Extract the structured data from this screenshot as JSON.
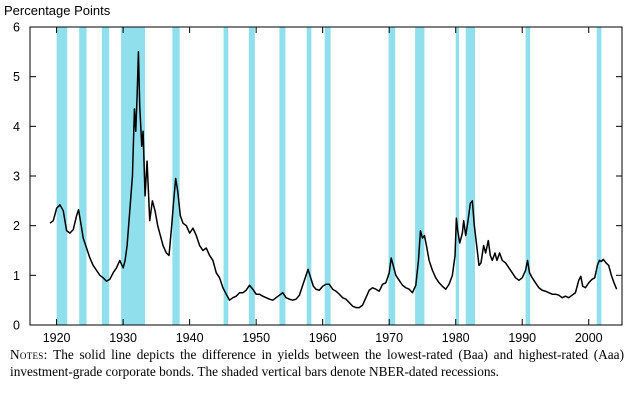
{
  "chart_data": {
    "type": "line",
    "title": "",
    "ylabel": "Percentage Points",
    "xlabel": "",
    "xlim": [
      1916,
      2005
    ],
    "ylim": [
      0,
      6
    ],
    "x_ticks": [
      1920,
      1930,
      1940,
      1950,
      1960,
      1970,
      1980,
      1990,
      2000
    ],
    "y_ticks": [
      0,
      1,
      2,
      3,
      4,
      5,
      6
    ],
    "line_color": "#000000",
    "recession_color": "#8FE0EC",
    "recessions": [
      [
        1920.0,
        1921.6
      ],
      [
        1923.4,
        1924.5
      ],
      [
        1926.8,
        1927.9
      ],
      [
        1929.7,
        1933.3
      ],
      [
        1937.4,
        1938.5
      ],
      [
        1945.1,
        1945.8
      ],
      [
        1948.9,
        1949.8
      ],
      [
        1953.5,
        1954.4
      ],
      [
        1957.6,
        1958.3
      ],
      [
        1960.3,
        1961.2
      ],
      [
        1969.9,
        1970.9
      ],
      [
        1973.9,
        1975.3
      ],
      [
        1980.0,
        1980.5
      ],
      [
        1981.5,
        1982.9
      ],
      [
        1990.5,
        1991.2
      ],
      [
        2001.2,
        2001.9
      ]
    ],
    "series": [
      {
        "values": [
          [
            1919.0,
            2.05
          ],
          [
            1919.5,
            2.1
          ],
          [
            1920.0,
            2.35
          ],
          [
            1920.5,
            2.42
          ],
          [
            1921.0,
            2.3
          ],
          [
            1921.5,
            1.9
          ],
          [
            1922.0,
            1.85
          ],
          [
            1922.5,
            1.92
          ],
          [
            1923.0,
            2.2
          ],
          [
            1923.3,
            2.32
          ],
          [
            1923.7,
            2.0
          ],
          [
            1924.0,
            1.75
          ],
          [
            1924.5,
            1.55
          ],
          [
            1925.0,
            1.35
          ],
          [
            1925.5,
            1.2
          ],
          [
            1926.0,
            1.1
          ],
          [
            1926.5,
            1.0
          ],
          [
            1927.0,
            0.95
          ],
          [
            1927.5,
            0.88
          ],
          [
            1928.0,
            0.92
          ],
          [
            1928.5,
            1.05
          ],
          [
            1929.0,
            1.15
          ],
          [
            1929.5,
            1.3
          ],
          [
            1930.0,
            1.15
          ],
          [
            1930.3,
            1.3
          ],
          [
            1930.6,
            1.6
          ],
          [
            1931.0,
            2.3
          ],
          [
            1931.4,
            3.0
          ],
          [
            1931.7,
            4.35
          ],
          [
            1931.9,
            3.9
          ],
          [
            1932.1,
            4.6
          ],
          [
            1932.3,
            5.5
          ],
          [
            1932.5,
            4.4
          ],
          [
            1932.8,
            3.6
          ],
          [
            1933.0,
            3.9
          ],
          [
            1933.3,
            2.6
          ],
          [
            1933.6,
            3.3
          ],
          [
            1934.0,
            2.1
          ],
          [
            1934.4,
            2.5
          ],
          [
            1934.8,
            2.3
          ],
          [
            1935.2,
            2.0
          ],
          [
            1935.6,
            1.8
          ],
          [
            1936.0,
            1.6
          ],
          [
            1936.5,
            1.45
          ],
          [
            1936.9,
            1.4
          ],
          [
            1937.3,
            2.0
          ],
          [
            1937.6,
            2.5
          ],
          [
            1937.9,
            2.95
          ],
          [
            1938.2,
            2.7
          ],
          [
            1938.6,
            2.2
          ],
          [
            1939.0,
            2.05
          ],
          [
            1939.5,
            2.0
          ],
          [
            1940.0,
            1.85
          ],
          [
            1940.5,
            1.95
          ],
          [
            1941.0,
            1.8
          ],
          [
            1941.5,
            1.6
          ],
          [
            1942.0,
            1.5
          ],
          [
            1942.5,
            1.55
          ],
          [
            1943.0,
            1.4
          ],
          [
            1943.5,
            1.3
          ],
          [
            1944.0,
            1.05
          ],
          [
            1944.5,
            0.95
          ],
          [
            1945.0,
            0.75
          ],
          [
            1945.5,
            0.62
          ],
          [
            1946.0,
            0.5
          ],
          [
            1946.5,
            0.55
          ],
          [
            1947.0,
            0.58
          ],
          [
            1947.5,
            0.65
          ],
          [
            1948.0,
            0.65
          ],
          [
            1948.5,
            0.7
          ],
          [
            1949.0,
            0.8
          ],
          [
            1949.5,
            0.72
          ],
          [
            1950.0,
            0.62
          ],
          [
            1950.5,
            0.62
          ],
          [
            1951.0,
            0.58
          ],
          [
            1951.5,
            0.55
          ],
          [
            1952.0,
            0.52
          ],
          [
            1952.5,
            0.5
          ],
          [
            1953.0,
            0.55
          ],
          [
            1953.5,
            0.6
          ],
          [
            1954.0,
            0.65
          ],
          [
            1954.5,
            0.55
          ],
          [
            1955.0,
            0.52
          ],
          [
            1955.5,
            0.5
          ],
          [
            1956.0,
            0.52
          ],
          [
            1956.5,
            0.6
          ],
          [
            1957.0,
            0.8
          ],
          [
            1957.5,
            1.0
          ],
          [
            1957.8,
            1.12
          ],
          [
            1958.2,
            0.95
          ],
          [
            1958.6,
            0.78
          ],
          [
            1959.0,
            0.72
          ],
          [
            1959.5,
            0.7
          ],
          [
            1960.0,
            0.78
          ],
          [
            1960.5,
            0.82
          ],
          [
            1961.0,
            0.82
          ],
          [
            1961.5,
            0.72
          ],
          [
            1962.0,
            0.68
          ],
          [
            1962.5,
            0.62
          ],
          [
            1963.0,
            0.55
          ],
          [
            1963.5,
            0.52
          ],
          [
            1964.0,
            0.45
          ],
          [
            1964.5,
            0.38
          ],
          [
            1965.0,
            0.35
          ],
          [
            1965.5,
            0.35
          ],
          [
            1966.0,
            0.4
          ],
          [
            1966.5,
            0.55
          ],
          [
            1967.0,
            0.7
          ],
          [
            1967.5,
            0.75
          ],
          [
            1968.0,
            0.72
          ],
          [
            1968.5,
            0.68
          ],
          [
            1969.0,
            0.82
          ],
          [
            1969.5,
            0.85
          ],
          [
            1970.0,
            1.05
          ],
          [
            1970.3,
            1.35
          ],
          [
            1970.7,
            1.15
          ],
          [
            1971.0,
            1.0
          ],
          [
            1971.5,
            0.9
          ],
          [
            1972.0,
            0.8
          ],
          [
            1972.5,
            0.75
          ],
          [
            1973.0,
            0.72
          ],
          [
            1973.5,
            0.65
          ],
          [
            1974.0,
            0.8
          ],
          [
            1974.4,
            1.3
          ],
          [
            1974.7,
            1.9
          ],
          [
            1975.0,
            1.75
          ],
          [
            1975.3,
            1.8
          ],
          [
            1975.6,
            1.6
          ],
          [
            1976.0,
            1.3
          ],
          [
            1976.5,
            1.1
          ],
          [
            1977.0,
            0.95
          ],
          [
            1977.5,
            0.85
          ],
          [
            1978.0,
            0.78
          ],
          [
            1978.5,
            0.72
          ],
          [
            1979.0,
            0.82
          ],
          [
            1979.5,
            1.0
          ],
          [
            1979.9,
            1.4
          ],
          [
            1980.1,
            2.15
          ],
          [
            1980.3,
            1.9
          ],
          [
            1980.6,
            1.65
          ],
          [
            1981.0,
            1.85
          ],
          [
            1981.2,
            2.1
          ],
          [
            1981.5,
            1.8
          ],
          [
            1981.8,
            2.05
          ],
          [
            1982.2,
            2.45
          ],
          [
            1982.5,
            2.5
          ],
          [
            1982.8,
            2.0
          ],
          [
            1983.2,
            1.55
          ],
          [
            1983.5,
            1.2
          ],
          [
            1983.8,
            1.25
          ],
          [
            1984.2,
            1.6
          ],
          [
            1984.5,
            1.45
          ],
          [
            1984.9,
            1.7
          ],
          [
            1985.2,
            1.4
          ],
          [
            1985.5,
            1.3
          ],
          [
            1985.9,
            1.45
          ],
          [
            1986.2,
            1.3
          ],
          [
            1986.6,
            1.45
          ],
          [
            1987.0,
            1.3
          ],
          [
            1987.5,
            1.25
          ],
          [
            1988.0,
            1.15
          ],
          [
            1988.5,
            1.05
          ],
          [
            1989.0,
            0.95
          ],
          [
            1989.5,
            0.9
          ],
          [
            1990.0,
            0.95
          ],
          [
            1990.5,
            1.1
          ],
          [
            1990.8,
            1.3
          ],
          [
            1991.1,
            1.05
          ],
          [
            1991.5,
            0.95
          ],
          [
            1992.0,
            0.85
          ],
          [
            1992.5,
            0.75
          ],
          [
            1993.0,
            0.7
          ],
          [
            1993.5,
            0.68
          ],
          [
            1994.0,
            0.65
          ],
          [
            1994.5,
            0.62
          ],
          [
            1995.0,
            0.62
          ],
          [
            1995.5,
            0.6
          ],
          [
            1996.0,
            0.55
          ],
          [
            1996.5,
            0.58
          ],
          [
            1997.0,
            0.55
          ],
          [
            1997.5,
            0.6
          ],
          [
            1998.0,
            0.65
          ],
          [
            1998.5,
            0.9
          ],
          [
            1998.8,
            0.98
          ],
          [
            1999.1,
            0.78
          ],
          [
            1999.5,
            0.75
          ],
          [
            2000.0,
            0.85
          ],
          [
            2000.5,
            0.92
          ],
          [
            2000.9,
            0.95
          ],
          [
            2001.3,
            1.2
          ],
          [
            2001.6,
            1.3
          ],
          [
            2001.9,
            1.28
          ],
          [
            2002.2,
            1.32
          ],
          [
            2002.6,
            1.25
          ],
          [
            2003.0,
            1.2
          ],
          [
            2003.4,
            1.0
          ],
          [
            2003.8,
            0.85
          ],
          [
            2004.2,
            0.72
          ]
        ]
      }
    ]
  },
  "notes": {
    "lead": "Notes:",
    "body": " The solid line depicts the difference in yields between the lowest-rated (Baa) and highest-rated (Aaa) investment-grade corporate bonds. The shaded vertical bars denote NBER-dated recessions."
  }
}
